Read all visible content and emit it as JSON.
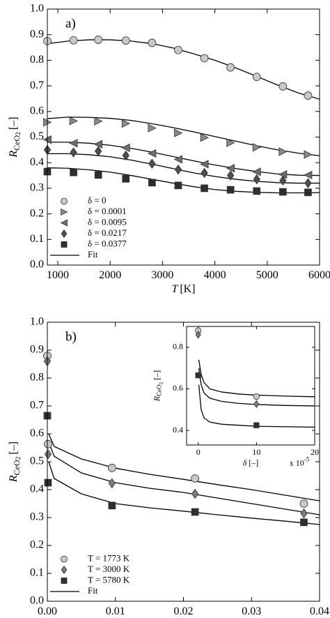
{
  "chart_data": [
    {
      "type": "scatter",
      "annotation": "a)",
      "xlabel": [
        "T",
        "[K]"
      ],
      "ylabel": [
        "R",
        "CeO",
        "2",
        "[–]"
      ],
      "xlim": [
        800,
        6000
      ],
      "ylim": [
        0,
        1
      ],
      "xticks": [
        1000,
        2000,
        3000,
        4000,
        5000,
        6000
      ],
      "yticks": [
        {
          "value": 0,
          "label": "0.0"
        },
        0.1,
        0.2,
        0.3,
        0.4,
        0.5,
        0.6,
        0.7,
        0.8,
        0.9,
        {
          "value": 1,
          "label": "1.0"
        }
      ],
      "legend": "lower left",
      "x": [
        800,
        1300,
        1773,
        2300,
        2800,
        3300,
        3800,
        4300,
        4800,
        5300,
        5780
      ],
      "series": [
        {
          "name": "δ = 0",
          "marker": "circle",
          "color": "#c8c8c8",
          "values": [
            0.875,
            0.878,
            0.88,
            0.877,
            0.868,
            0.84,
            0.808,
            0.772,
            0.735,
            0.698,
            0.662
          ]
        },
        {
          "name": "δ = 0.0001",
          "marker": "triangle-right",
          "color": "#8a8a8a",
          "values": [
            0.558,
            0.563,
            0.562,
            0.553,
            0.535,
            0.516,
            0.498,
            0.478,
            0.46,
            0.443,
            0.432
          ]
        },
        {
          "name": "δ = 0.0095",
          "marker": "triangle-left",
          "color": "#6e6e6e",
          "values": [
            0.49,
            0.476,
            0.472,
            0.458,
            0.436,
            0.413,
            0.394,
            0.378,
            0.364,
            0.354,
            0.352
          ]
        },
        {
          "name": "δ = 0.0217",
          "marker": "diamond",
          "color": "#4e4e4e",
          "values": [
            0.45,
            0.44,
            0.445,
            0.428,
            0.396,
            0.373,
            0.36,
            0.35,
            0.335,
            0.33,
            0.32
          ]
        },
        {
          "name": "δ = 0.0377",
          "marker": "square",
          "color": "#2e2e2e",
          "values": [
            0.365,
            0.362,
            0.352,
            0.337,
            0.322,
            0.311,
            0.3,
            0.294,
            0.289,
            0.286,
            0.284
          ]
        }
      ],
      "fit": {
        "name": "Fit",
        "color": "#000000",
        "x": [
          800,
          1200,
          1600,
          2000,
          2400,
          2800,
          3200,
          3600,
          4000,
          4400,
          4800,
          5200,
          5600,
          6000
        ],
        "lines": [
          [
            0.865,
            0.875,
            0.88,
            0.88,
            0.875,
            0.865,
            0.848,
            0.825,
            0.8,
            0.77,
            0.737,
            0.703,
            0.672,
            0.648
          ],
          [
            0.572,
            0.578,
            0.577,
            0.573,
            0.565,
            0.552,
            0.537,
            0.52,
            0.502,
            0.484,
            0.466,
            0.45,
            0.437,
            0.427
          ],
          [
            0.48,
            0.48,
            0.476,
            0.468,
            0.456,
            0.441,
            0.424,
            0.407,
            0.391,
            0.377,
            0.365,
            0.356,
            0.351,
            0.35
          ],
          [
            0.435,
            0.435,
            0.431,
            0.423,
            0.41,
            0.394,
            0.377,
            0.36,
            0.346,
            0.335,
            0.327,
            0.322,
            0.32,
            0.32
          ],
          [
            0.38,
            0.378,
            0.372,
            0.363,
            0.35,
            0.335,
            0.32,
            0.306,
            0.295,
            0.288,
            0.284,
            0.282,
            0.282,
            0.283
          ]
        ]
      }
    },
    {
      "type": "scatter",
      "annotation": "b)",
      "xlabel": [
        "δ",
        "[–]"
      ],
      "ylabel": [
        "R",
        "CeO",
        "2",
        "[–]"
      ],
      "xlim": [
        0,
        0.04
      ],
      "ylim": [
        0,
        1
      ],
      "xticks": [
        {
          "value": 0,
          "label": "0.00"
        },
        0.01,
        0.02,
        0.03,
        0.04
      ],
      "yticks": [
        {
          "value": 0,
          "label": "0.0"
        },
        0.1,
        0.2,
        0.3,
        0.4,
        0.5,
        0.6,
        0.7,
        0.8,
        0.9,
        {
          "value": 1,
          "label": "1.0"
        }
      ],
      "legend": "lower left",
      "x": [
        0,
        0.0001,
        0.0095,
        0.0217,
        0.0377
      ],
      "series": [
        {
          "name": "T = 1773 K",
          "marker": "circle",
          "color": "#c8c8c8",
          "values": [
            0.88,
            0.563,
            0.478,
            0.44,
            0.35
          ]
        },
        {
          "name": "T = 3000 K",
          "marker": "diamond",
          "color": "#7a7a7a",
          "values": [
            0.86,
            0.527,
            0.423,
            0.385,
            0.315
          ]
        },
        {
          "name": "T = 5780 K",
          "marker": "square",
          "color": "#2e2e2e",
          "values": [
            0.665,
            0.425,
            0.343,
            0.32,
            0.283
          ]
        }
      ],
      "fit": {
        "name": "Fit",
        "color": "#000000",
        "x": [
          0.0002,
          0.001,
          0.005,
          0.01,
          0.015,
          0.02,
          0.025,
          0.03,
          0.035,
          0.04
        ],
        "lines": [
          [
            0.6,
            0.555,
            0.51,
            0.477,
            0.455,
            0.437,
            0.418,
            0.4,
            0.38,
            0.36
          ],
          [
            0.57,
            0.52,
            0.46,
            0.425,
            0.405,
            0.39,
            0.37,
            0.35,
            0.33,
            0.31
          ],
          [
            0.5,
            0.44,
            0.385,
            0.35,
            0.335,
            0.323,
            0.31,
            0.298,
            0.287,
            0.275
          ]
        ]
      }
    },
    {
      "type": "scatter",
      "xlabel": [
        "δ",
        "[–]"
      ],
      "ylabel": [
        "R",
        "CeO",
        "2",
        "[–]"
      ],
      "x_multiplier": [
        "x 10",
        "-5"
      ],
      "xlim": [
        -2,
        20
      ],
      "ylim": [
        0.33,
        0.9
      ],
      "xticks": [
        0,
        10,
        20
      ],
      "yticks": [
        0.4,
        0.6,
        0.8
      ],
      "x": [
        0,
        10
      ],
      "series": [
        {
          "marker": "circle",
          "color": "#c8c8c8",
          "values": [
            0.88,
            0.563
          ]
        },
        {
          "marker": "diamond",
          "color": "#7a7a7a",
          "values": [
            0.86,
            0.527
          ]
        },
        {
          "marker": "square",
          "color": "#2e2e2e",
          "values": [
            0.665,
            0.425
          ]
        }
      ],
      "fit": {
        "color": "#000000",
        "x": [
          0.1,
          0.5,
          1,
          2,
          4,
          7,
          10,
          15,
          20
        ],
        "lines": [
          [
            0.74,
            0.67,
            0.63,
            0.6,
            0.585,
            0.575,
            0.57,
            0.565,
            0.562
          ],
          [
            0.7,
            0.62,
            0.58,
            0.555,
            0.54,
            0.53,
            0.525,
            0.52,
            0.518
          ],
          [
            0.62,
            0.5,
            0.46,
            0.44,
            0.43,
            0.425,
            0.42,
            0.418,
            0.416
          ]
        ]
      }
    }
  ]
}
